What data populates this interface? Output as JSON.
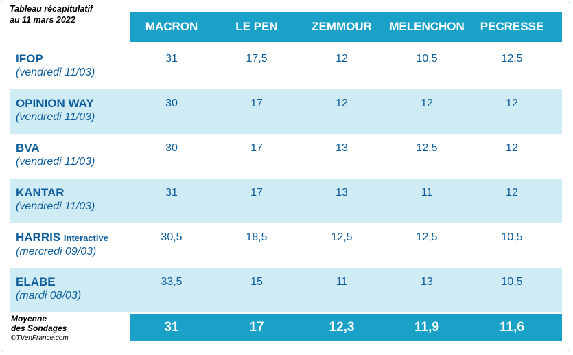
{
  "caption": {
    "line1": "Tableau récapitulatif",
    "line2": "au 11 mars 2022"
  },
  "candidates": [
    "MACRON",
    "LE PEN",
    "ZEMMOUR",
    "MELENCHON",
    "PECRESSE"
  ],
  "polls": [
    {
      "org": "IFOP",
      "sub": "",
      "date": "(vendredi 11/03)",
      "values": [
        "31",
        "17,5",
        "12",
        "10,5",
        "12,5"
      ]
    },
    {
      "org": "OPINION WAY",
      "sub": "",
      "date": "(vendredi 11/03)",
      "values": [
        "30",
        "17",
        "12",
        "12",
        "12"
      ]
    },
    {
      "org": "BVA",
      "sub": "",
      "date": "(vendredi 11/03)",
      "values": [
        "30",
        "17",
        "13",
        "12,5",
        "12"
      ]
    },
    {
      "org": "KANTAR",
      "sub": "",
      "date": "(vendredi 11/03)",
      "values": [
        "31",
        "17",
        "13",
        "11",
        "12"
      ]
    },
    {
      "org": "HARRIS",
      "sub": "Interactive",
      "date": "(mercredi 09/03)",
      "values": [
        "30,5",
        "18,5",
        "12,5",
        "12,5",
        "10,5"
      ]
    },
    {
      "org": "ELABE",
      "sub": "",
      "date": "(mardi 08/03)",
      "values": [
        "33,5",
        "15",
        "11",
        "13",
        "10,5"
      ]
    }
  ],
  "average": {
    "label_line1": "Moyenne",
    "label_line2": "des Sondages",
    "credit": "©TVenFrance.com",
    "values": [
      "31",
      "17",
      "12,3",
      "11,9",
      "11,6"
    ]
  },
  "colors": {
    "header_bg": "#1aa1c7",
    "row_alt_bg": "#cfecf4",
    "text_blue": "#0e5d9b"
  }
}
